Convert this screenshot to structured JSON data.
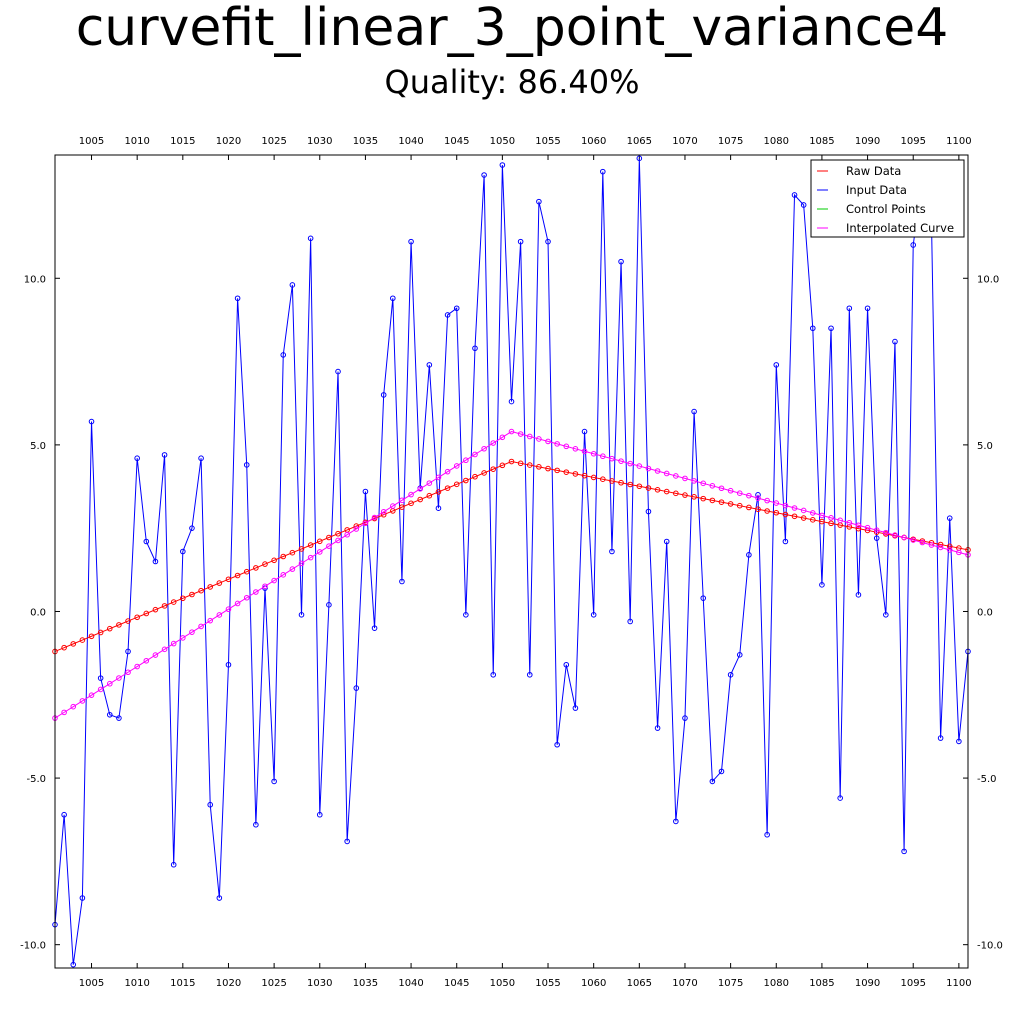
{
  "chart_data": {
    "type": "line",
    "title": "curvefit_linear_3_point_variance4",
    "subtitle": "Quality: 86.40%",
    "xlim": [
      1001,
      1101
    ],
    "ylim": [
      -10.7,
      13.7
    ],
    "x_ticks": [
      1005,
      1010,
      1015,
      1020,
      1025,
      1030,
      1035,
      1040,
      1045,
      1050,
      1055,
      1060,
      1065,
      1070,
      1075,
      1080,
      1085,
      1090,
      1095,
      1100
    ],
    "y_ticks": [
      -10.0,
      -5.0,
      0.0,
      5.0,
      10.0
    ],
    "y_tick_labels": [
      "-10.0",
      "-5.0",
      "0.0",
      "5.0",
      "10.0"
    ],
    "grid": false,
    "legend_position": "top-right",
    "series": [
      {
        "name": "Raw Data",
        "color": "#ff0000",
        "marker": "circle",
        "piecewise_linear": {
          "x": [
            1001,
            1051,
            1101
          ],
          "y": [
            -1.2,
            4.5,
            1.85
          ]
        }
      },
      {
        "name": "Input Data",
        "color": "#0000ff",
        "marker": "circle",
        "x_start": 1001,
        "x_step": 1,
        "y": [
          -9.4,
          -6.1,
          -10.6,
          -8.6,
          5.7,
          -2.0,
          -3.1,
          -3.2,
          -1.2,
          4.6,
          2.1,
          1.5,
          4.7,
          -7.6,
          1.8,
          2.5,
          4.6,
          -5.8,
          -8.6,
          -1.6,
          9.4,
          4.4,
          -6.4,
          0.7,
          -5.1,
          7.7,
          9.8,
          -0.1,
          11.2,
          -6.1,
          0.2,
          7.2,
          -6.9,
          -2.3,
          3.6,
          -0.5,
          6.5,
          9.4,
          0.9,
          11.1,
          3.7,
          7.4,
          3.1,
          8.9,
          9.1,
          -0.1,
          7.9,
          13.1,
          -1.9,
          13.4,
          6.3,
          11.1,
          -1.9,
          12.3,
          11.1,
          -4.0,
          -1.6,
          -2.9,
          5.4,
          -0.1,
          13.2,
          1.8,
          10.5,
          -0.3,
          13.6,
          3.0,
          -3.5,
          2.1,
          -6.3,
          -3.2,
          6.0,
          0.4,
          -5.1,
          -4.8,
          -1.9,
          -1.3,
          1.7,
          3.5,
          -6.7,
          7.4,
          2.1,
          12.5,
          12.2,
          8.5,
          0.8,
          8.5,
          -5.6,
          9.1,
          0.5,
          9.1,
          2.2,
          -0.1,
          8.1,
          -7.2,
          11.0,
          13.0,
          11.7,
          -3.8,
          2.8,
          -3.9,
          -1.2
        ]
      },
      {
        "name": "Control Points",
        "color": "#00cc00",
        "marker": "none",
        "x": [],
        "y": []
      },
      {
        "name": "Interpolated Curve",
        "color": "#ff00ff",
        "marker": "circle",
        "piecewise_linear": {
          "x": [
            1001,
            1051,
            1101
          ],
          "y": [
            -3.2,
            5.4,
            1.7
          ]
        }
      }
    ]
  }
}
